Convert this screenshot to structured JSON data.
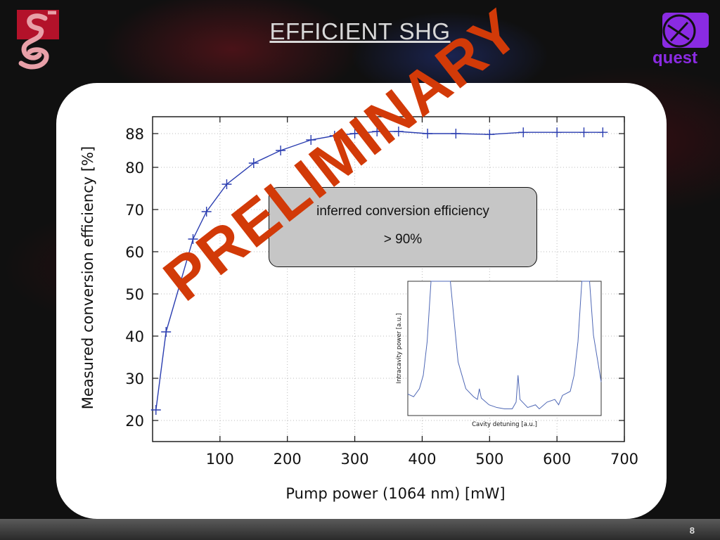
{
  "slide": {
    "title": "EFFICIENT SHG",
    "page_number": "8",
    "right_logo_text": "quest"
  },
  "callout": {
    "line1": "inferred conversion efficiency",
    "line2": "> 90%"
  },
  "stamp": {
    "text": "PRELIMINARY",
    "color": "#d23a08"
  },
  "colors": {
    "series": "#2a3db0",
    "inset_series": "#4e67b5",
    "background": "#101010",
    "card": "#ffffff"
  },
  "chart_data": [
    {
      "type": "line",
      "title": "",
      "xlabel": "Pump power (1064 nm) [mW]",
      "ylabel": "Measured conversion efficiency [%]",
      "xlim": [
        0,
        700
      ],
      "ylim": [
        15,
        92
      ],
      "xticks": [
        100,
        200,
        300,
        400,
        500,
        600,
        700
      ],
      "yticks": [
        20,
        30,
        40,
        50,
        60,
        70,
        80,
        88
      ],
      "grid": true,
      "marker": "plus",
      "series": [
        {
          "x": [
            5,
            20,
            60,
            80,
            110,
            150,
            190,
            235,
            270,
            300,
            333,
            365,
            408,
            450,
            500,
            550,
            600,
            640,
            668
          ],
          "y": [
            22.5,
            41,
            63,
            69.5,
            76,
            81,
            84,
            86.5,
            87.5,
            88,
            88.5,
            88.5,
            88,
            88,
            87.8,
            88.3,
            88.3,
            88.3,
            88.3
          ]
        }
      ]
    },
    {
      "type": "line",
      "title": "",
      "xlabel": "Cavity detuning [a.u.]",
      "ylabel": "Intracavity power [a.u.]",
      "grid": false,
      "series": [
        {
          "x": [
            0,
            0.03,
            0.06,
            0.08,
            0.1,
            0.12,
            0.14,
            0.22,
            0.26,
            0.3,
            0.34,
            0.36,
            0.37,
            0.38,
            0.42,
            0.46,
            0.5,
            0.54,
            0.56,
            0.57,
            0.58,
            0.62,
            0.66,
            0.68,
            0.72,
            0.76,
            0.78,
            0.8,
            0.84,
            0.86,
            0.88,
            0.9,
            0.92,
            0.94,
            0.96,
            1.0
          ],
          "y": [
            0.16,
            0.14,
            0.2,
            0.3,
            0.55,
            1.05,
            1.05,
            1.05,
            0.4,
            0.2,
            0.14,
            0.12,
            0.2,
            0.13,
            0.08,
            0.06,
            0.05,
            0.05,
            0.1,
            0.3,
            0.12,
            0.06,
            0.08,
            0.05,
            0.1,
            0.12,
            0.08,
            0.15,
            0.18,
            0.3,
            0.55,
            1.05,
            1.05,
            1.05,
            0.6,
            0.25
          ]
        }
      ]
    }
  ]
}
